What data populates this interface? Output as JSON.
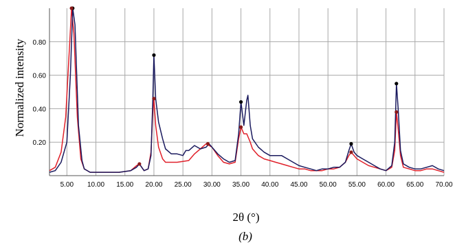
{
  "chart_data": {
    "type": "line",
    "xlabel": "2θ (°)",
    "ylabel": "Normalized intensity",
    "panel_label": "(b)",
    "xlim": [
      2,
      70
    ],
    "ylim": [
      0,
      1.0
    ],
    "x_ticks": [
      5,
      10,
      15,
      20,
      25,
      30,
      35,
      40,
      45,
      50,
      55,
      60,
      65,
      70
    ],
    "x_tick_labels": [
      "5.00",
      "10.00",
      "15.00",
      "20.00",
      "25.00",
      "30.00",
      "35.00",
      "40.00",
      "45.00",
      "50.00",
      "55.00",
      "60.00",
      "65.00",
      "70.00"
    ],
    "y_ticks": [
      0.2,
      0.4,
      0.6,
      0.8
    ],
    "y_tick_labels": [
      "0.20",
      "0.40",
      "0.60",
      "0.80"
    ],
    "grid": true,
    "series": [
      {
        "color": "#1a1a5e",
        "marker_color": "#000000",
        "points": [
          [
            2,
            0.02
          ],
          [
            3,
            0.03
          ],
          [
            4,
            0.08
          ],
          [
            5,
            0.2
          ],
          [
            5.6,
            0.6
          ],
          [
            6,
            1.0
          ],
          [
            6.4,
            0.9
          ],
          [
            7,
            0.3
          ],
          [
            7.6,
            0.09
          ],
          [
            8,
            0.04
          ],
          [
            9,
            0.02
          ],
          [
            10,
            0.02
          ],
          [
            12,
            0.02
          ],
          [
            14,
            0.02
          ],
          [
            16,
            0.03
          ],
          [
            17,
            0.05
          ],
          [
            17.5,
            0.07
          ],
          [
            18.3,
            0.03
          ],
          [
            19,
            0.04
          ],
          [
            19.5,
            0.12
          ],
          [
            19.8,
            0.45
          ],
          [
            20,
            0.72
          ],
          [
            20.3,
            0.46
          ],
          [
            20.8,
            0.32
          ],
          [
            21.5,
            0.22
          ],
          [
            22,
            0.16
          ],
          [
            23,
            0.13
          ],
          [
            24,
            0.13
          ],
          [
            25,
            0.12
          ],
          [
            25.5,
            0.15
          ],
          [
            26,
            0.15
          ],
          [
            27,
            0.18
          ],
          [
            28,
            0.16
          ],
          [
            29,
            0.17
          ],
          [
            29.5,
            0.19
          ],
          [
            30,
            0.17
          ],
          [
            31,
            0.13
          ],
          [
            32,
            0.1
          ],
          [
            33,
            0.08
          ],
          [
            34,
            0.09
          ],
          [
            34.6,
            0.25
          ],
          [
            35,
            0.44
          ],
          [
            35.5,
            0.3
          ],
          [
            36,
            0.45
          ],
          [
            36.2,
            0.48
          ],
          [
            36.6,
            0.3
          ],
          [
            37,
            0.22
          ],
          [
            38,
            0.17
          ],
          [
            39,
            0.14
          ],
          [
            40,
            0.12
          ],
          [
            41,
            0.12
          ],
          [
            42,
            0.12
          ],
          [
            43,
            0.1
          ],
          [
            44,
            0.08
          ],
          [
            45,
            0.06
          ],
          [
            46,
            0.05
          ],
          [
            47,
            0.04
          ],
          [
            48,
            0.03
          ],
          [
            49,
            0.04
          ],
          [
            50,
            0.04
          ],
          [
            51,
            0.05
          ],
          [
            52,
            0.05
          ],
          [
            53,
            0.08
          ],
          [
            53.6,
            0.15
          ],
          [
            54,
            0.19
          ],
          [
            54.5,
            0.14
          ],
          [
            55,
            0.12
          ],
          [
            56,
            0.1
          ],
          [
            57,
            0.08
          ],
          [
            58,
            0.06
          ],
          [
            59,
            0.04
          ],
          [
            60,
            0.03
          ],
          [
            61,
            0.06
          ],
          [
            61.5,
            0.2
          ],
          [
            61.8,
            0.55
          ],
          [
            62.1,
            0.4
          ],
          [
            62.5,
            0.15
          ],
          [
            63,
            0.07
          ],
          [
            64,
            0.05
          ],
          [
            65,
            0.04
          ],
          [
            66,
            0.04
          ],
          [
            67,
            0.05
          ],
          [
            68,
            0.06
          ],
          [
            69,
            0.04
          ],
          [
            70,
            0.03
          ]
        ],
        "markers": [
          [
            6,
            1.0
          ],
          [
            20,
            0.72
          ],
          [
            35,
            0.44
          ],
          [
            54,
            0.19
          ],
          [
            61.8,
            0.55
          ]
        ]
      },
      {
        "color": "#e0202a",
        "marker_color": "#8b1a1a",
        "points": [
          [
            2,
            0.03
          ],
          [
            3,
            0.05
          ],
          [
            4,
            0.14
          ],
          [
            4.8,
            0.35
          ],
          [
            5.5,
            0.8
          ],
          [
            5.8,
            1.0
          ],
          [
            6.2,
            0.85
          ],
          [
            6.8,
            0.35
          ],
          [
            7.4,
            0.1
          ],
          [
            8,
            0.04
          ],
          [
            9,
            0.02
          ],
          [
            10,
            0.02
          ],
          [
            12,
            0.02
          ],
          [
            14,
            0.02
          ],
          [
            16,
            0.03
          ],
          [
            17,
            0.06
          ],
          [
            17.5,
            0.07
          ],
          [
            18.3,
            0.03
          ],
          [
            19,
            0.04
          ],
          [
            19.5,
            0.14
          ],
          [
            19.8,
            0.38
          ],
          [
            20,
            0.46
          ],
          [
            20.3,
            0.3
          ],
          [
            20.8,
            0.17
          ],
          [
            21.5,
            0.1
          ],
          [
            22,
            0.08
          ],
          [
            24,
            0.08
          ],
          [
            26,
            0.09
          ],
          [
            27,
            0.13
          ],
          [
            28,
            0.16
          ],
          [
            29,
            0.19
          ],
          [
            30,
            0.17
          ],
          [
            31,
            0.12
          ],
          [
            32,
            0.08
          ],
          [
            33,
            0.07
          ],
          [
            34,
            0.08
          ],
          [
            34.6,
            0.22
          ],
          [
            35,
            0.29
          ],
          [
            35.5,
            0.25
          ],
          [
            36,
            0.25
          ],
          [
            36.6,
            0.2
          ],
          [
            37,
            0.16
          ],
          [
            38,
            0.12
          ],
          [
            39,
            0.1
          ],
          [
            40,
            0.09
          ],
          [
            41,
            0.08
          ],
          [
            42,
            0.07
          ],
          [
            43,
            0.06
          ],
          [
            44,
            0.05
          ],
          [
            45,
            0.04
          ],
          [
            46,
            0.04
          ],
          [
            47,
            0.03
          ],
          [
            48,
            0.03
          ],
          [
            49,
            0.03
          ],
          [
            50,
            0.04
          ],
          [
            51,
            0.04
          ],
          [
            52,
            0.05
          ],
          [
            53,
            0.08
          ],
          [
            53.6,
            0.12
          ],
          [
            54,
            0.14
          ],
          [
            54.5,
            0.12
          ],
          [
            55,
            0.1
          ],
          [
            56,
            0.08
          ],
          [
            57,
            0.06
          ],
          [
            58,
            0.05
          ],
          [
            59,
            0.04
          ],
          [
            60,
            0.03
          ],
          [
            61,
            0.05
          ],
          [
            61.5,
            0.15
          ],
          [
            61.8,
            0.38
          ],
          [
            62.1,
            0.28
          ],
          [
            62.5,
            0.12
          ],
          [
            63,
            0.05
          ],
          [
            64,
            0.04
          ],
          [
            65,
            0.03
          ],
          [
            66,
            0.03
          ],
          [
            67,
            0.04
          ],
          [
            68,
            0.04
          ],
          [
            69,
            0.03
          ],
          [
            70,
            0.02
          ]
        ],
        "markers": [
          [
            5.8,
            1.0
          ],
          [
            17.5,
            0.07
          ],
          [
            20,
            0.46
          ],
          [
            29.3,
            0.19
          ],
          [
            35,
            0.29
          ],
          [
            54,
            0.14
          ],
          [
            61.8,
            0.38
          ]
        ]
      }
    ]
  }
}
